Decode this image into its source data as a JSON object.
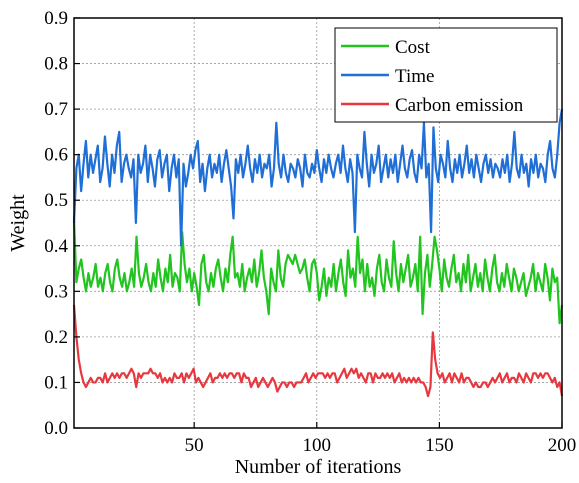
{
  "chart_data": {
    "type": "line",
    "xlabel": "Number of iterations",
    "ylabel": "Weight",
    "xlim": [
      1,
      200
    ],
    "ylim": [
      0,
      0.9
    ],
    "xticks": [
      50,
      100,
      150,
      200
    ],
    "yticks": [
      0.0,
      0.1,
      0.2,
      0.3,
      0.4,
      0.5,
      0.6,
      0.7,
      0.8,
      0.9
    ],
    "xtick_labels": [
      "50",
      "100",
      "150",
      "200"
    ],
    "ytick_labels": [
      "0.0",
      "0.1",
      "0.2",
      "0.3",
      "0.4",
      "0.5",
      "0.6",
      "0.7",
      "0.8",
      "0.9"
    ],
    "grid": true,
    "legend_position": "top-right",
    "series": [
      {
        "name": "Cost",
        "color": "#22c41f",
        "values": [
          0.46,
          0.32,
          0.35,
          0.37,
          0.33,
          0.3,
          0.34,
          0.31,
          0.33,
          0.36,
          0.31,
          0.33,
          0.3,
          0.34,
          0.36,
          0.32,
          0.3,
          0.35,
          0.37,
          0.33,
          0.31,
          0.34,
          0.3,
          0.32,
          0.35,
          0.31,
          0.42,
          0.34,
          0.31,
          0.33,
          0.36,
          0.32,
          0.3,
          0.34,
          0.31,
          0.37,
          0.33,
          0.3,
          0.35,
          0.32,
          0.38,
          0.31,
          0.34,
          0.33,
          0.3,
          0.43,
          0.36,
          0.32,
          0.35,
          0.3,
          0.34,
          0.31,
          0.27,
          0.36,
          0.38,
          0.32,
          0.3,
          0.34,
          0.31,
          0.35,
          0.37,
          0.33,
          0.3,
          0.35,
          0.32,
          0.38,
          0.42,
          0.33,
          0.34,
          0.31,
          0.36,
          0.3,
          0.33,
          0.35,
          0.32,
          0.37,
          0.31,
          0.34,
          0.39,
          0.33,
          0.3,
          0.25,
          0.35,
          0.32,
          0.3,
          0.39,
          0.33,
          0.31,
          0.36,
          0.38,
          0.37,
          0.36,
          0.38,
          0.36,
          0.34,
          0.35,
          0.37,
          0.33,
          0.3,
          0.36,
          0.37,
          0.34,
          0.28,
          0.31,
          0.35,
          0.29,
          0.33,
          0.31,
          0.36,
          0.3,
          0.34,
          0.37,
          0.32,
          0.29,
          0.39,
          0.33,
          0.35,
          0.31,
          0.42,
          0.34,
          0.37,
          0.3,
          0.36,
          0.31,
          0.33,
          0.29,
          0.35,
          0.38,
          0.32,
          0.3,
          0.37,
          0.33,
          0.31,
          0.41,
          0.34,
          0.3,
          0.36,
          0.32,
          0.35,
          0.38,
          0.31,
          0.33,
          0.36,
          0.3,
          0.42,
          0.25,
          0.34,
          0.38,
          0.31,
          0.36,
          0.42,
          0.39,
          0.35,
          0.3,
          0.37,
          0.33,
          0.31,
          0.35,
          0.38,
          0.32,
          0.34,
          0.3,
          0.36,
          0.32,
          0.38,
          0.3,
          0.33,
          0.36,
          0.31,
          0.34,
          0.3,
          0.37,
          0.33,
          0.3,
          0.35,
          0.38,
          0.32,
          0.3,
          0.34,
          0.31,
          0.36,
          0.33,
          0.3,
          0.35,
          0.33,
          0.3,
          0.32,
          0.34,
          0.29,
          0.31,
          0.33,
          0.36,
          0.3,
          0.34,
          0.32,
          0.3,
          0.36,
          0.33,
          0.28,
          0.35,
          0.32,
          0.33,
          0.23,
          0.27
        ]
      },
      {
        "name": "Time",
        "color": "#1f6fd6",
        "values": [
          0.45,
          0.57,
          0.6,
          0.52,
          0.58,
          0.63,
          0.55,
          0.6,
          0.56,
          0.59,
          0.62,
          0.54,
          0.57,
          0.64,
          0.58,
          0.53,
          0.6,
          0.56,
          0.62,
          0.65,
          0.54,
          0.58,
          0.6,
          0.57,
          0.55,
          0.59,
          0.45,
          0.6,
          0.56,
          0.58,
          0.62,
          0.54,
          0.6,
          0.57,
          0.53,
          0.59,
          0.61,
          0.55,
          0.58,
          0.6,
          0.52,
          0.57,
          0.6,
          0.55,
          0.59,
          0.4,
          0.58,
          0.53,
          0.56,
          0.6,
          0.57,
          0.61,
          0.63,
          0.54,
          0.58,
          0.52,
          0.57,
          0.6,
          0.55,
          0.58,
          0.56,
          0.6,
          0.54,
          0.58,
          0.61,
          0.57,
          0.53,
          0.46,
          0.59,
          0.56,
          0.6,
          0.55,
          0.58,
          0.62,
          0.57,
          0.54,
          0.59,
          0.56,
          0.6,
          0.55,
          0.58,
          0.57,
          0.6,
          0.53,
          0.57,
          0.67,
          0.58,
          0.55,
          0.6,
          0.56,
          0.54,
          0.58,
          0.57,
          0.55,
          0.59,
          0.57,
          0.53,
          0.6,
          0.56,
          0.55,
          0.58,
          0.56,
          0.61,
          0.57,
          0.54,
          0.59,
          0.56,
          0.6,
          0.57,
          0.55,
          0.58,
          0.6,
          0.56,
          0.62,
          0.57,
          0.54,
          0.59,
          0.56,
          0.43,
          0.6,
          0.57,
          0.55,
          0.65,
          0.58,
          0.53,
          0.6,
          0.56,
          0.58,
          0.62,
          0.54,
          0.57,
          0.6,
          0.55,
          0.59,
          0.56,
          0.6,
          0.54,
          0.58,
          0.62,
          0.57,
          0.55,
          0.59,
          0.61,
          0.56,
          0.54,
          0.6,
          0.57,
          0.67,
          0.55,
          0.58,
          0.43,
          0.66,
          0.57,
          0.54,
          0.6,
          0.58,
          0.55,
          0.63,
          0.57,
          0.54,
          0.59,
          0.56,
          0.6,
          0.55,
          0.58,
          0.62,
          0.56,
          0.59,
          0.55,
          0.6,
          0.57,
          0.54,
          0.58,
          0.6,
          0.56,
          0.59,
          0.55,
          0.58,
          0.57,
          0.55,
          0.59,
          0.56,
          0.6,
          0.54,
          0.58,
          0.65,
          0.57,
          0.55,
          0.6,
          0.56,
          0.58,
          0.53,
          0.59,
          0.56,
          0.6,
          0.55,
          0.58,
          0.57,
          0.54,
          0.6,
          0.63,
          0.57,
          0.55,
          0.6,
          0.67,
          0.7
        ]
      },
      {
        "name": "Carbon emission",
        "color": "#e8383f",
        "values": [
          0.27,
          0.2,
          0.15,
          0.12,
          0.1,
          0.09,
          0.1,
          0.11,
          0.1,
          0.1,
          0.11,
          0.11,
          0.1,
          0.12,
          0.1,
          0.11,
          0.12,
          0.11,
          0.12,
          0.11,
          0.12,
          0.12,
          0.11,
          0.12,
          0.13,
          0.12,
          0.09,
          0.12,
          0.11,
          0.12,
          0.12,
          0.12,
          0.13,
          0.12,
          0.12,
          0.11,
          0.12,
          0.1,
          0.11,
          0.1,
          0.11,
          0.1,
          0.12,
          0.11,
          0.11,
          0.12,
          0.1,
          0.12,
          0.11,
          0.12,
          0.13,
          0.1,
          0.11,
          0.1,
          0.09,
          0.1,
          0.11,
          0.12,
          0.1,
          0.11,
          0.11,
          0.12,
          0.11,
          0.12,
          0.11,
          0.12,
          0.12,
          0.11,
          0.12,
          0.12,
          0.1,
          0.12,
          0.11,
          0.11,
          0.09,
          0.1,
          0.11,
          0.09,
          0.1,
          0.11,
          0.1,
          0.09,
          0.1,
          0.11,
          0.1,
          0.08,
          0.09,
          0.1,
          0.1,
          0.09,
          0.1,
          0.1,
          0.09,
          0.1,
          0.1,
          0.1,
          0.11,
          0.12,
          0.1,
          0.11,
          0.12,
          0.11,
          0.12,
          0.12,
          0.12,
          0.11,
          0.12,
          0.11,
          0.12,
          0.12,
          0.1,
          0.11,
          0.12,
          0.13,
          0.11,
          0.12,
          0.13,
          0.12,
          0.13,
          0.11,
          0.12,
          0.11,
          0.1,
          0.12,
          0.12,
          0.1,
          0.12,
          0.11,
          0.11,
          0.12,
          0.11,
          0.12,
          0.11,
          0.12,
          0.1,
          0.11,
          0.12,
          0.1,
          0.11,
          0.1,
          0.11,
          0.1,
          0.11,
          0.1,
          0.11,
          0.1,
          0.1,
          0.09,
          0.07,
          0.09,
          0.21,
          0.15,
          0.12,
          0.11,
          0.12,
          0.1,
          0.11,
          0.12,
          0.1,
          0.12,
          0.11,
          0.1,
          0.12,
          0.1,
          0.11,
          0.11,
          0.1,
          0.09,
          0.1,
          0.09,
          0.09,
          0.1,
          0.1,
          0.09,
          0.1,
          0.11,
          0.1,
          0.11,
          0.12,
          0.1,
          0.11,
          0.12,
          0.1,
          0.11,
          0.11,
          0.1,
          0.12,
          0.11,
          0.1,
          0.12,
          0.11,
          0.1,
          0.12,
          0.12,
          0.11,
          0.12,
          0.11,
          0.12,
          0.12,
          0.11,
          0.1,
          0.11,
          0.09,
          0.1,
          0.07
        ]
      }
    ]
  }
}
